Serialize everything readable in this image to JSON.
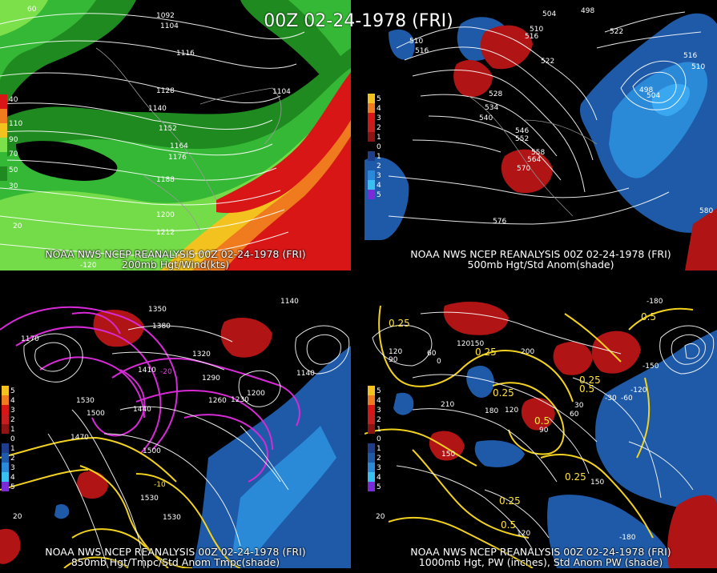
{
  "main_title": "00Z 02-24-1978 (FRI)",
  "panels": {
    "p200": {
      "caption1": "NOAA NWS NCEP REANALYSIS 00Z 02-24-1978 (FRI)",
      "caption2": "200mb Hgt/Wind(kts)",
      "legend": [
        "40",
        "110",
        "90",
        "70",
        "50",
        "30"
      ],
      "height_labels": [
        "1092",
        "1104",
        "1116",
        "1128",
        "1140",
        "1152",
        "1164",
        "1176",
        "1188",
        "1200",
        "1212",
        "1104"
      ],
      "corner_labels": [
        "60",
        "20",
        "-120"
      ]
    },
    "p500": {
      "caption1": "NOAA NWS NCEP REANALYSIS 00Z 02-24-1978 (FRI)",
      "caption2": "500mb Hgt/Std Anom(shade)",
      "legend": [
        "5",
        "4",
        "3",
        "2",
        "1",
        "0",
        "1",
        "2",
        "3",
        "4",
        "5"
      ],
      "height_labels": [
        "504",
        "498",
        "510",
        "516",
        "522",
        "510",
        "516",
        "522",
        "528",
        "534",
        "540",
        "546",
        "552",
        "558",
        "564",
        "570",
        "576",
        "498",
        "504",
        "510",
        "516",
        "580"
      ]
    },
    "p850": {
      "caption1": "NOAA NWS NCEP REANALYSIS 00Z 02-24-1978 (FRI)",
      "caption2": "850mb Hgt/Tmpc/Std Anom Tmpc(shade)",
      "legend": [
        "5",
        "4",
        "3",
        "2",
        "1",
        "0",
        "1",
        "2",
        "3",
        "4",
        "5"
      ],
      "height_labels": [
        "1350",
        "1380",
        "1140",
        "1170",
        "1320",
        "1410",
        "1290",
        "1260",
        "1230",
        "1200",
        "1140",
        "1530",
        "1500",
        "1470",
        "1440",
        "1500",
        "1530",
        "1530"
      ],
      "temp_labels": [
        "-10",
        "-20"
      ],
      "corner_labels": [
        "20"
      ]
    },
    "p1000": {
      "caption1": "NOAA NWS NCEP REANALYSIS 00Z 02-24-1978 (FRI)",
      "caption2": "1000mb Hgt, PW (inches), Std Anom PW (shade)",
      "legend": [
        "5",
        "4",
        "3",
        "2",
        "1",
        "0",
        "1",
        "2",
        "3",
        "4",
        "5"
      ],
      "height_labels": [
        "-180",
        "120",
        "90",
        "60",
        "0",
        "150",
        "120",
        "210",
        "180",
        "120",
        "90",
        "60",
        "30",
        "-30",
        "-60",
        "-120",
        "-150",
        "150",
        "200",
        "120",
        "150",
        "-180",
        "20"
      ],
      "pw_labels": [
        "0.25",
        "0.25",
        "0.25",
        "0.25",
        "0.25",
        "0.5",
        "0.5",
        "0.5",
        "0.5",
        "0.25"
      ]
    }
  },
  "colors": {
    "green_dark": "#1f8a1f",
    "green_mid": "#35b835",
    "green_light": "#7be04a",
    "yellow": "#f3c21f",
    "orange": "#f07b1e",
    "red": "#d81616",
    "anom_red": "#b01414",
    "anom_blue": "#1e5aa8",
    "anom_lightblue": "#2a8ad8",
    "magenta": "#d62ad6",
    "contour_yellow": "#f2d21f"
  }
}
